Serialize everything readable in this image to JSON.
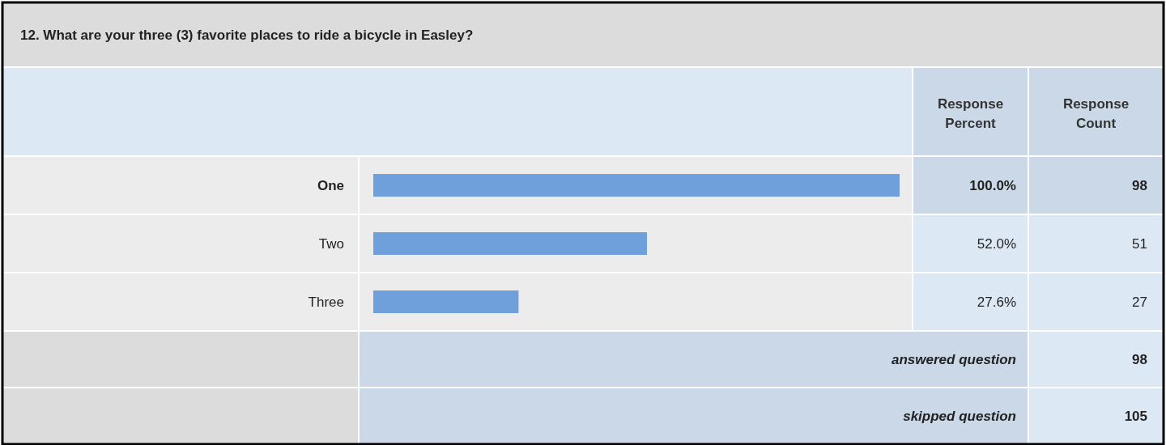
{
  "chart_data": {
    "type": "bar",
    "orientation": "horizontal",
    "title": "12. What are your three (3) favorite places to ride a bicycle in Easley?",
    "categories": [
      "One",
      "Two",
      "Three"
    ],
    "values": [
      100.0,
      52.0,
      27.6
    ],
    "xlim": [
      0,
      100
    ],
    "tick_labels": "y",
    "color": "#6fa0dc",
    "value_labels": [
      "100.0%",
      "52.0%",
      "27.6%"
    ],
    "annotations": [
      "Response Percent",
      "Response Count",
      "98",
      "51",
      "27",
      "answered question",
      "98",
      "skipped question",
      "105"
    ]
  }
}
